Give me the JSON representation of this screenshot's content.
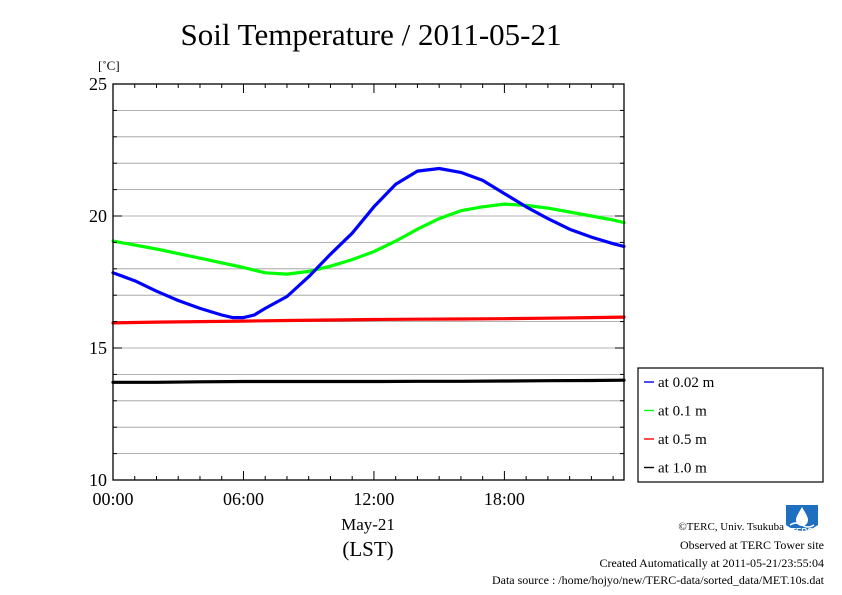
{
  "chart_data": {
    "type": "line",
    "title": "Soil Temperature / 2011-05-21",
    "yunit": "[˚C]",
    "xlabel_date": "May-21",
    "xlabel": "(LST)",
    "ylim": [
      10,
      25
    ],
    "xlim": [
      0,
      23.5
    ],
    "yticks": [
      10,
      15,
      20,
      25
    ],
    "xticks": [
      0,
      6,
      12,
      18
    ],
    "xtick_labels": [
      "00:00",
      "06:00",
      "12:00",
      "18:00"
    ],
    "grid": "horizontal",
    "legend_position": "right",
    "series": [
      {
        "name": "at 1.0 m",
        "color": "#000000",
        "x": [
          0,
          2,
          4,
          6,
          8,
          10,
          12,
          14,
          16,
          18,
          20,
          22,
          23.5
        ],
        "y": [
          13.7,
          13.7,
          13.72,
          13.73,
          13.73,
          13.73,
          13.73,
          13.74,
          13.74,
          13.75,
          13.76,
          13.77,
          13.78
        ]
      },
      {
        "name": "at 0.5 m",
        "color": "#ff0000",
        "x": [
          0,
          2,
          4,
          6,
          8,
          10,
          12,
          14,
          16,
          18,
          20,
          22,
          23.5
        ],
        "y": [
          15.95,
          15.98,
          16.0,
          16.02,
          16.04,
          16.06,
          16.08,
          16.09,
          16.1,
          16.11,
          16.13,
          16.15,
          16.17
        ]
      },
      {
        "name": "at 0.1 m",
        "color": "#00ff00",
        "x": [
          0,
          2,
          4,
          6,
          7,
          8,
          9,
          10,
          11,
          12,
          13,
          14,
          15,
          16,
          17,
          18,
          19,
          20,
          21,
          22,
          23,
          23.5
        ],
        "y": [
          19.05,
          18.75,
          18.4,
          18.05,
          17.85,
          17.8,
          17.9,
          18.1,
          18.35,
          18.65,
          19.05,
          19.5,
          19.9,
          20.2,
          20.35,
          20.45,
          20.4,
          20.3,
          20.15,
          20.0,
          19.85,
          19.75
        ]
      },
      {
        "name": "at 0.02 m",
        "color": "#0000ff",
        "x": [
          0,
          1,
          2,
          3,
          4,
          5,
          5.5,
          6,
          6.5,
          7,
          8,
          9,
          10,
          11,
          12,
          13,
          14,
          15,
          16,
          17,
          18,
          19,
          20,
          21,
          22,
          23,
          23.5
        ],
        "y": [
          17.85,
          17.55,
          17.15,
          16.8,
          16.5,
          16.25,
          16.15,
          16.15,
          16.25,
          16.5,
          16.95,
          17.7,
          18.55,
          19.35,
          20.35,
          21.2,
          21.7,
          21.8,
          21.65,
          21.35,
          20.85,
          20.35,
          19.9,
          19.5,
          19.2,
          18.95,
          18.85
        ]
      }
    ]
  },
  "footer": {
    "copyright": "©TERC, Univ. Tsukuba",
    "observed": "Observed at TERC Tower site",
    "created": "Created Automatically at 2011-05-21/23:55:04",
    "source": "Data source : /home/hojyo/new/TERC-data/sorted_data/MET.10s.dat"
  },
  "logo": {
    "text": "TERC",
    "color": "#1f6fc0"
  }
}
